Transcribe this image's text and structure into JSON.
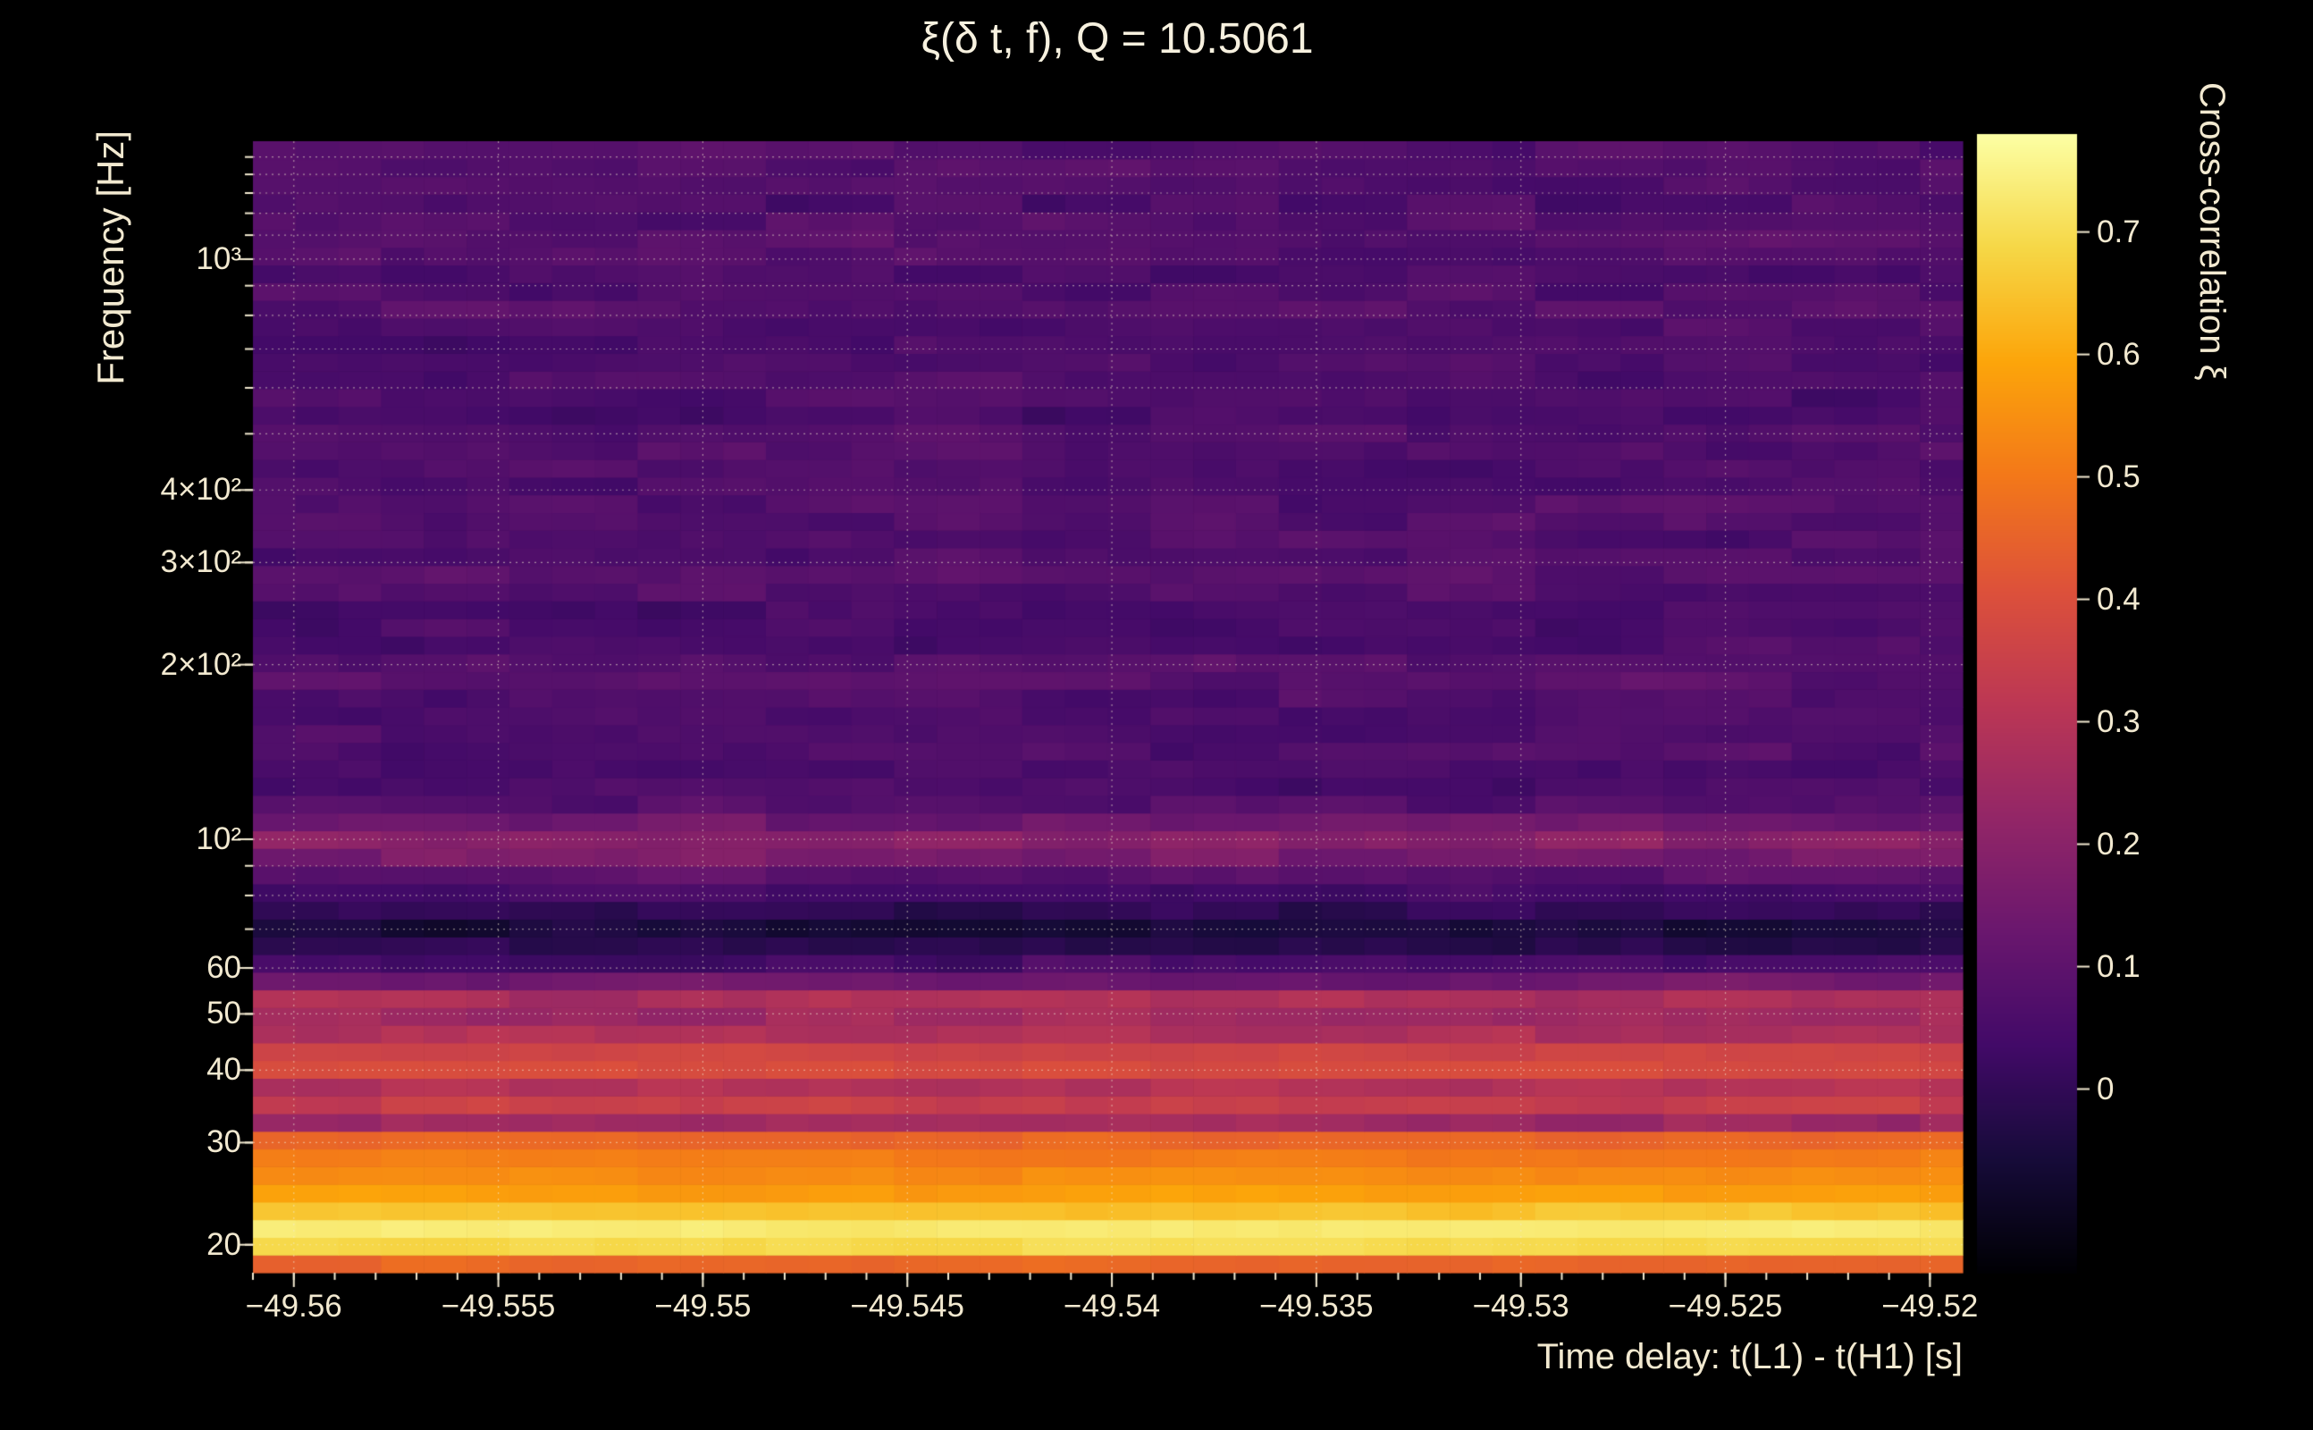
{
  "page": {
    "background": "#000000",
    "text_color": "#f2e9d0",
    "grid_color": "rgba(244,236,210,0.55)"
  },
  "chart_data": {
    "type": "heatmap",
    "title": "ξ(δ t, f), Q = 10.5061",
    "xlabel": "Time delay: t(L1) - t(H1) [s]",
    "ylabel": "Frequency [Hz]",
    "colorbar_label": "Cross-correlation ξ",
    "x_range": [
      -49.561,
      -49.5192
    ],
    "y_range_hz": [
      17.9,
      1597
    ],
    "y_scale": "log",
    "grid": true,
    "value_range": [
      -0.15,
      0.78
    ],
    "x_ticks": [
      {
        "v": -49.56,
        "label": "−49.56"
      },
      {
        "v": -49.555,
        "label": "−49.555"
      },
      {
        "v": -49.55,
        "label": "−49.55"
      },
      {
        "v": -49.545,
        "label": "−49.545"
      },
      {
        "v": -49.54,
        "label": "−49.54"
      },
      {
        "v": -49.535,
        "label": "−49.535"
      },
      {
        "v": -49.53,
        "label": "−49.53"
      },
      {
        "v": -49.525,
        "label": "−49.525"
      },
      {
        "v": -49.52,
        "label": "−49.52"
      }
    ],
    "x_minor_tick_step": 0.001,
    "y_ticks": [
      {
        "v": 1000,
        "label": "10³"
      },
      {
        "v": 400,
        "label": "4×10²"
      },
      {
        "v": 300,
        "label": "3×10²"
      },
      {
        "v": 200,
        "label": "2×10²"
      },
      {
        "v": 100,
        "label": "10²"
      },
      {
        "v": 60,
        "label": "60"
      },
      {
        "v": 50,
        "label": "50"
      },
      {
        "v": 40,
        "label": "40"
      },
      {
        "v": 30,
        "label": "30"
      },
      {
        "v": 20,
        "label": "20"
      }
    ],
    "grid_freqs": [
      20,
      30,
      40,
      50,
      60,
      70,
      80,
      90,
      100,
      200,
      300,
      400,
      500,
      600,
      700,
      800,
      900,
      1000,
      1100,
      1200,
      1300,
      1400,
      1500
    ],
    "colorbar_ticks": [
      {
        "v": 0.7,
        "label": "0.7"
      },
      {
        "v": 0.6,
        "label": "0.6"
      },
      {
        "v": 0.5,
        "label": "0.5"
      },
      {
        "v": 0.4,
        "label": "0.4"
      },
      {
        "v": 0.3,
        "label": "0.3"
      },
      {
        "v": 0.2,
        "label": "0.2"
      },
      {
        "v": 0.1,
        "label": "0.1"
      },
      {
        "v": 0,
        "label": "0"
      }
    ],
    "colormap_name": "inferno",
    "colormap": [
      [
        0.0,
        "#000004"
      ],
      [
        0.1,
        "#160b39"
      ],
      [
        0.2,
        "#420a68"
      ],
      [
        0.3,
        "#6a176e"
      ],
      [
        0.4,
        "#932667"
      ],
      [
        0.5,
        "#bc3754"
      ],
      [
        0.6,
        "#dd513a"
      ],
      [
        0.7,
        "#f37819"
      ],
      [
        0.8,
        "#fca50a"
      ],
      [
        0.9,
        "#f6d746"
      ],
      [
        1.0,
        "#fcffa4"
      ]
    ],
    "n_time_columns": 40,
    "n_freq_rows": 64,
    "noise_amplitude": 0.025,
    "freq_profile": [
      [
        17.9,
        0.4
      ],
      [
        18.4,
        0.45
      ],
      [
        19.0,
        0.5
      ],
      [
        19.6,
        0.65
      ],
      [
        20.3,
        0.76
      ],
      [
        21.0,
        0.75
      ],
      [
        21.8,
        0.7
      ],
      [
        22.6,
        0.66
      ],
      [
        23.5,
        0.62
      ],
      [
        24.5,
        0.58
      ],
      [
        25.8,
        0.55
      ],
      [
        27.2,
        0.52
      ],
      [
        29.0,
        0.5
      ],
      [
        31.0,
        0.44
      ],
      [
        33.0,
        0.18
      ],
      [
        35.0,
        0.35
      ],
      [
        37.5,
        0.3
      ],
      [
        40.5,
        0.4
      ],
      [
        44.0,
        0.35
      ],
      [
        48.0,
        0.22
      ],
      [
        52.5,
        0.3
      ],
      [
        57.5,
        0.12
      ],
      [
        63.0,
        0.01
      ],
      [
        70.0,
        -0.06
      ],
      [
        78.0,
        0.02
      ],
      [
        85.0,
        0.08
      ],
      [
        92.0,
        0.15
      ],
      [
        98.0,
        0.22
      ],
      [
        105.0,
        0.15
      ],
      [
        115.0,
        0.08
      ],
      [
        127.0,
        0.05
      ],
      [
        145.0,
        0.07
      ],
      [
        165.0,
        0.05
      ],
      [
        190.0,
        0.09
      ],
      [
        215.0,
        0.06
      ],
      [
        245.0,
        0.05
      ],
      [
        280.0,
        0.09
      ],
      [
        320.0,
        0.06
      ],
      [
        365.0,
        0.08
      ],
      [
        420.0,
        0.05
      ],
      [
        480.0,
        0.08
      ],
      [
        550.0,
        0.05
      ],
      [
        630.0,
        0.07
      ],
      [
        720.0,
        0.05
      ],
      [
        830.0,
        0.08
      ],
      [
        950.0,
        0.06
      ],
      [
        1090.0,
        0.09
      ],
      [
        1250.0,
        0.06
      ],
      [
        1430.0,
        0.08
      ],
      [
        1597.0,
        0.07
      ]
    ]
  }
}
